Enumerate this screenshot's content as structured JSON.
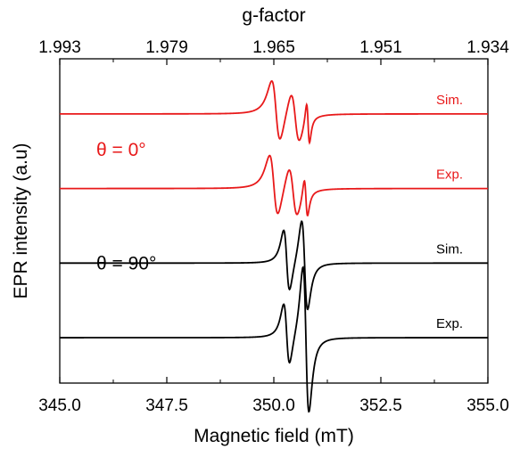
{
  "chart_data": {
    "type": "line",
    "title": "",
    "xlabel": "Magnetic field  (mT)",
    "ylabel": "EPR intensity  (a.u)",
    "top_axis_label": "g-factor",
    "xlim": [
      345.0,
      355.0
    ],
    "x_ticks": [
      "345.0",
      "347.5",
      "350.0",
      "352.5",
      "355.0"
    ],
    "x_tick_values": [
      345.0,
      347.5,
      350.0,
      352.5,
      355.0
    ],
    "top_ticks": [
      "1.993",
      "1.979",
      "1.965",
      "1.951",
      "1.934"
    ],
    "y_ticks_shown": false,
    "grid": false,
    "legend": "none",
    "annotations": [
      {
        "text": "θ = 0°",
        "color": "#e8191a"
      },
      {
        "text": "θ = 90°",
        "color": "#000000"
      }
    ],
    "series": [
      {
        "name": "Sim.",
        "color": "#e8191a",
        "baseline": 0.83,
        "features": [
          {
            "center": 350.05,
            "halfwidth": 0.1,
            "amp": 0.11
          },
          {
            "center": 350.5,
            "halfwidth": 0.1,
            "amp": 0.09
          },
          {
            "center": 350.8,
            "halfwidth": 0.035,
            "amp": 0.075
          }
        ]
      },
      {
        "name": "Exp.",
        "color": "#e8191a",
        "baseline": 0.6,
        "features": [
          {
            "center": 350.0,
            "halfwidth": 0.1,
            "amp": 0.11
          },
          {
            "center": 350.45,
            "halfwidth": 0.1,
            "amp": 0.09
          },
          {
            "center": 350.75,
            "halfwidth": 0.04,
            "amp": 0.07
          }
        ]
      },
      {
        "name": "Sim.",
        "color": "#000000",
        "baseline": 0.37,
        "features": [
          {
            "center": 350.3,
            "halfwidth": 0.07,
            "amp": 0.11
          },
          {
            "center": 350.72,
            "halfwidth": 0.07,
            "amp": 0.16
          }
        ]
      },
      {
        "name": "Exp.",
        "color": "#000000",
        "baseline": 0.14,
        "features": [
          {
            "center": 350.3,
            "halfwidth": 0.07,
            "amp": 0.11
          },
          {
            "center": 350.75,
            "halfwidth": 0.07,
            "amp": 0.26
          }
        ]
      }
    ]
  }
}
